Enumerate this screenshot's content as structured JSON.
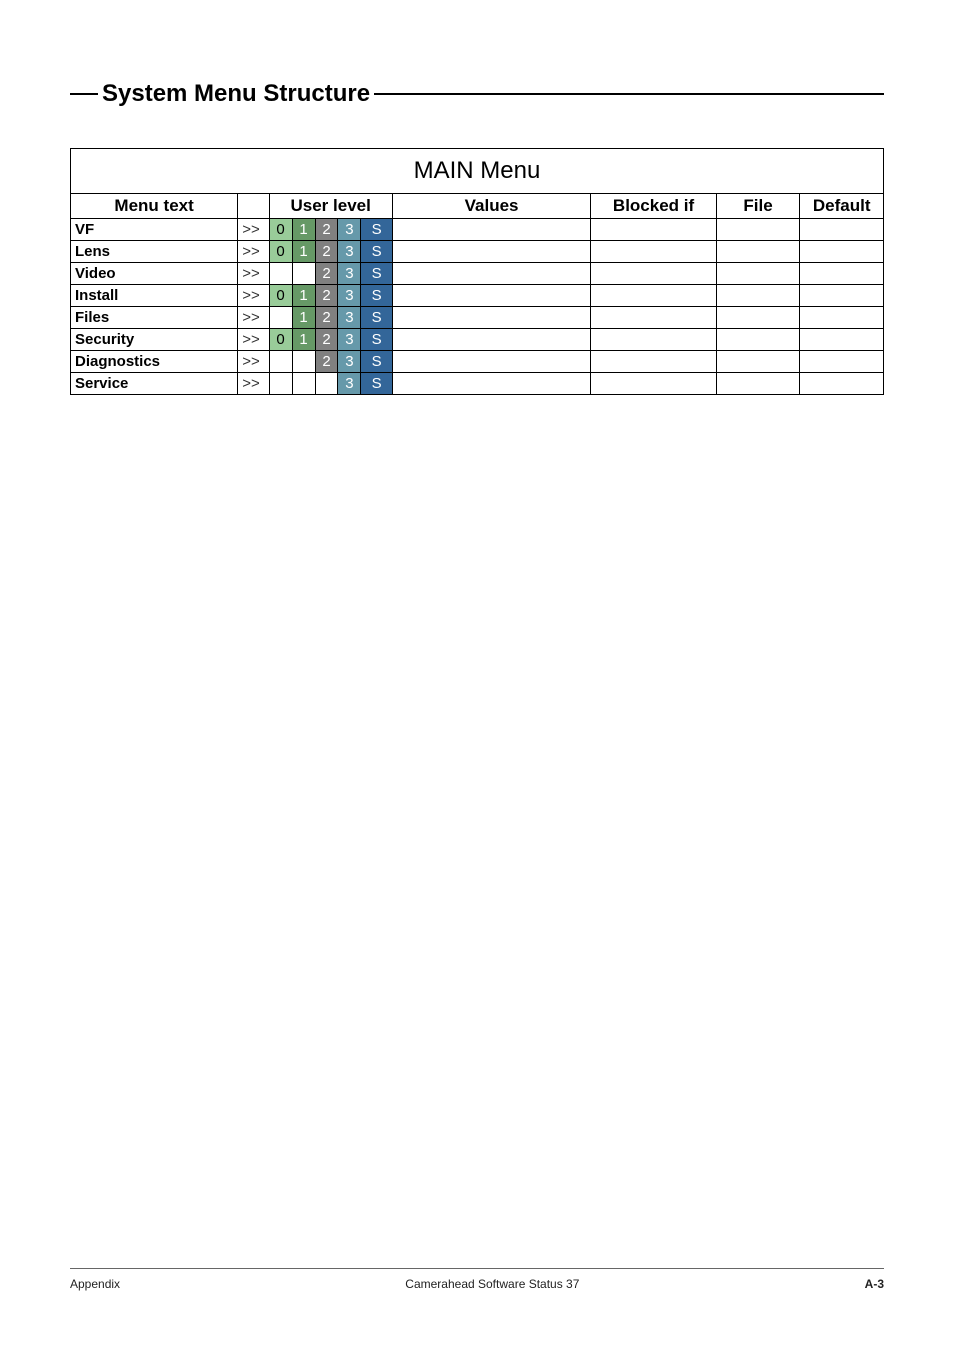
{
  "section_title": "System Menu Structure",
  "table": {
    "title": "MAIN Menu",
    "headers": {
      "menu_text": "Menu text",
      "user_level": "User level",
      "values": "Values",
      "blocked_if": "Blocked if",
      "file": "File",
      "default": "Default"
    },
    "level_tokens": {
      "l0": "0",
      "l1": "1",
      "l2": "2",
      "l3": "3",
      "lS": "S"
    },
    "arrow": ">>",
    "rows": [
      {
        "label": "VF",
        "levels": [
          "0",
          "1",
          "2",
          "3",
          "S"
        ]
      },
      {
        "label": "Lens",
        "levels": [
          "0",
          "1",
          "2",
          "3",
          "S"
        ]
      },
      {
        "label": "Video",
        "levels": [
          "",
          "",
          "2",
          "3",
          "S"
        ]
      },
      {
        "label": "Install",
        "levels": [
          "0",
          "1",
          "2",
          "3",
          "S"
        ]
      },
      {
        "label": "Files",
        "levels": [
          "",
          "1",
          "2",
          "3",
          "S"
        ]
      },
      {
        "label": "Security",
        "levels": [
          "0",
          "1",
          "2",
          "3",
          "S"
        ]
      },
      {
        "label": "Diagnostics",
        "levels": [
          "",
          "",
          "2",
          "3",
          "S"
        ]
      },
      {
        "label": "Service",
        "levels": [
          "",
          "",
          "",
          "3",
          "S"
        ]
      }
    ]
  },
  "footer": {
    "left": "Appendix",
    "center": "Camerahead Software Status 37",
    "right": "A-3"
  },
  "colors": {
    "lvl0": "#99cc99",
    "lvl1": "#669966",
    "lvl2": "#808080",
    "lvl3": "#6699aa",
    "lvlS": "#336699"
  }
}
